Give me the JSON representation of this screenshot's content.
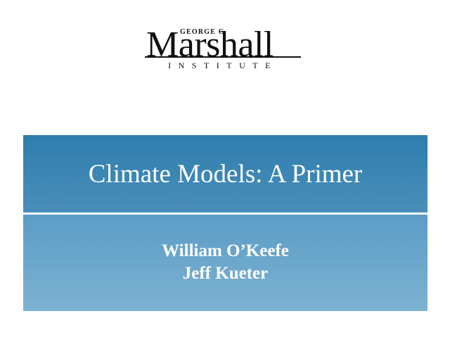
{
  "logo": {
    "overline": "GEORGE C.",
    "name": "Marshall",
    "subtitle": "INSTITUTE"
  },
  "title": "Climate Models: A Primer",
  "authors": [
    "William O’Keefe",
    "Jeff Kueter"
  ],
  "colors": {
    "title_band": "#2e7dad",
    "author_band": "#6aa6cb",
    "text": "#ffffff"
  }
}
